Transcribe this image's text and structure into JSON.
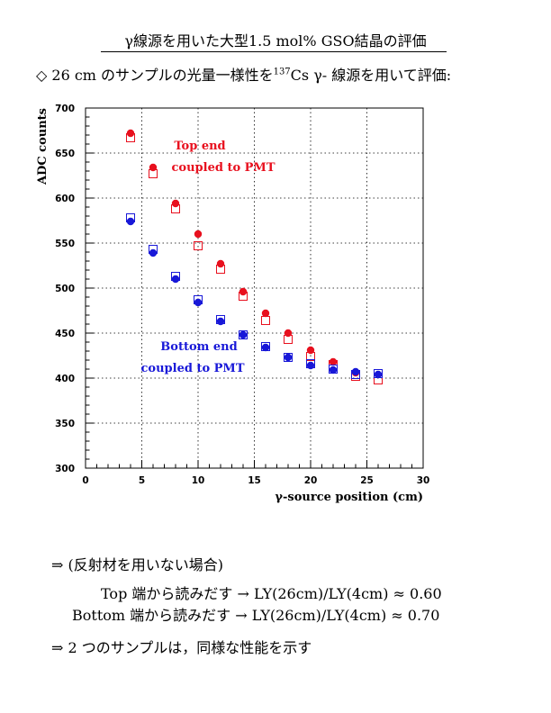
{
  "page": {
    "title": "γ線源を用いた大型1.5 mol% GSO結晶の評価",
    "subtitle_prefix": "◇ 26 cm のサンプルの光量一様性を",
    "subtitle_isotope_mass": "137",
    "subtitle_suffix": "Cs γ- 線源を用いて評価:",
    "conclusions": {
      "line1": "⇒ (反射材を用いない場合)",
      "line2": "Top 端から読みだす → LY(26cm)/LY(4cm) ≈ 0.60",
      "line3": "Bottom 端から読みだす → LY(26cm)/LY(4cm) ≈ 0.70",
      "line4": "⇒ 2 つのサンプルは，同様な性能を示す"
    }
  },
  "colors": {
    "top": "#e8101e",
    "bottom": "#1818d8",
    "grid": "#000000"
  },
  "chart_data": {
    "type": "scatter",
    "xlabel": "γ-source position (cm)",
    "ylabel": "ADC counts",
    "xlim": [
      0,
      30
    ],
    "ylim": [
      300,
      700
    ],
    "xticks": [
      "0",
      "5",
      "10",
      "15",
      "20",
      "25",
      "30"
    ],
    "yticks": [
      "300",
      "350",
      "400",
      "450",
      "500",
      "550",
      "600",
      "650",
      "700"
    ],
    "grid": true,
    "annotations": {
      "top_line1": "Top end",
      "top_line2": "coupled to PMT",
      "bottom_line1": "Bottom end",
      "bottom_line2": "coupled to PMT"
    },
    "series": [
      {
        "name": "Top end filled circles",
        "color_key": "top",
        "marker": "filled-circle",
        "x": [
          4,
          6,
          8,
          10,
          12,
          14,
          16,
          18,
          20,
          22,
          24
        ],
        "y": [
          672,
          634,
          594,
          560,
          527,
          496,
          472,
          450,
          431,
          418,
          406
        ]
      },
      {
        "name": "Top end open squares",
        "color_key": "top",
        "marker": "open-square",
        "x": [
          4,
          6,
          8,
          10,
          12,
          14,
          16,
          18,
          20,
          22,
          24,
          26
        ],
        "y": [
          667,
          627,
          588,
          547,
          521,
          491,
          464,
          443,
          424,
          415,
          402,
          398
        ]
      },
      {
        "name": "Bottom end filled circles",
        "color_key": "bottom",
        "marker": "filled-circle",
        "x": [
          4,
          6,
          8,
          10,
          12,
          14,
          16,
          18,
          20,
          22,
          24,
          26
        ],
        "y": [
          574,
          539,
          510,
          484,
          463,
          448,
          434,
          423,
          414,
          409,
          407,
          404
        ]
      },
      {
        "name": "Bottom end open squares",
        "color_key": "bottom",
        "marker": "open-square",
        "x": [
          4,
          6,
          8,
          10,
          12,
          14,
          16,
          18,
          20,
          22,
          24,
          26
        ],
        "y": [
          578,
          543,
          513,
          487,
          465,
          448,
          435,
          423,
          416,
          410,
          404,
          405
        ]
      }
    ]
  }
}
